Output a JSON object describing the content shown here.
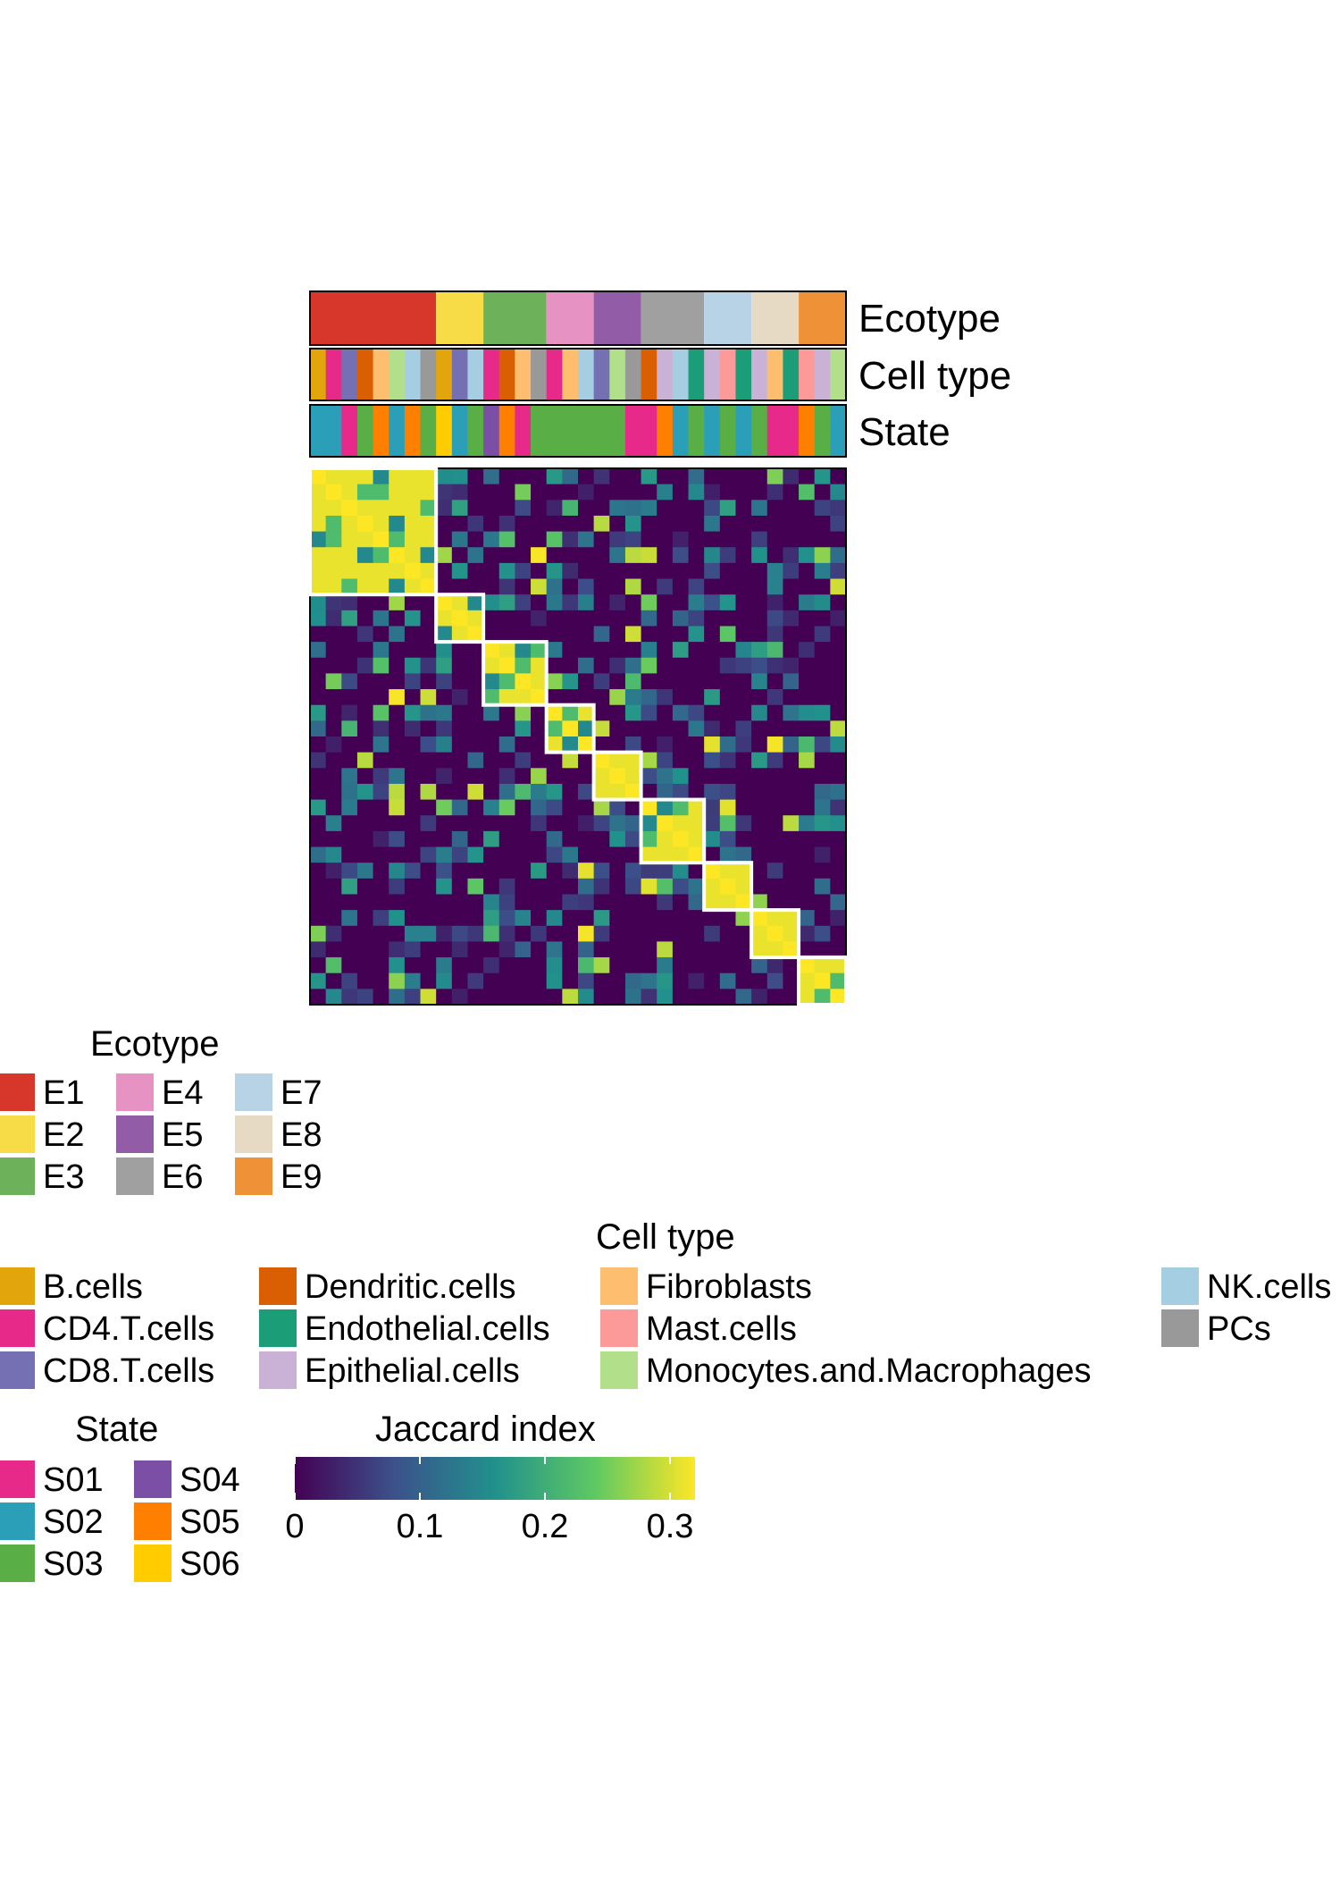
{
  "chart_data": {
    "type": "heatmap",
    "annotation_labels": [
      "Ecotype",
      "Cell type",
      "State"
    ],
    "ecotype_blocks": [
      {
        "label": "E1",
        "size": 8
      },
      {
        "label": "E2",
        "size": 3
      },
      {
        "label": "E3",
        "size": 4
      },
      {
        "label": "E4",
        "size": 3
      },
      {
        "label": "E5",
        "size": 3
      },
      {
        "label": "E6",
        "size": 4
      },
      {
        "label": "E7",
        "size": 3
      },
      {
        "label": "E8",
        "size": 3
      },
      {
        "label": "E9",
        "size": 3
      }
    ],
    "colorbar": {
      "title": "Jaccard index",
      "ticks": [
        "0",
        "0.1",
        "0.2",
        "0.3"
      ],
      "range": [
        0,
        0.32
      ],
      "palette": [
        "#440154",
        "#3b528b",
        "#21918c",
        "#5ec962",
        "#fde725"
      ]
    },
    "legends": {
      "ecotype": {
        "title": "Ecotype",
        "items": [
          {
            "label": "E1",
            "color": "#d7372b"
          },
          {
            "label": "E2",
            "color": "#f8dc47"
          },
          {
            "label": "E3",
            "color": "#6db15b"
          },
          {
            "label": "E4",
            "color": "#e693c4"
          },
          {
            "label": "E5",
            "color": "#925ca7"
          },
          {
            "label": "E6",
            "color": "#a0a0a0"
          },
          {
            "label": "E7",
            "color": "#b7d3e5"
          },
          {
            "label": "E8",
            "color": "#e6dac4"
          },
          {
            "label": "E9",
            "color": "#ef9137"
          }
        ]
      },
      "cell_type": {
        "title": "Cell type",
        "items": [
          {
            "label": "B.cells",
            "color": "#e2a60c"
          },
          {
            "label": "CD4.T.cells",
            "color": "#e7298a"
          },
          {
            "label": "CD8.T.cells",
            "color": "#7570b3"
          },
          {
            "label": "Dendritic.cells",
            "color": "#d95f02"
          },
          {
            "label": "Endothelial.cells",
            "color": "#1b9e77"
          },
          {
            "label": "Epithelial.cells",
            "color": "#cab2d6"
          },
          {
            "label": "Fibroblasts",
            "color": "#fdbf6f"
          },
          {
            "label": "Mast.cells",
            "color": "#fb9a99"
          },
          {
            "label": "Monocytes.and.Macrophages",
            "color": "#b2df8a"
          },
          {
            "label": "NK.cells",
            "color": "#a6cee3"
          },
          {
            "label": "PCs",
            "color": "#999999"
          }
        ]
      },
      "state": {
        "title": "State",
        "items": [
          {
            "label": "S01",
            "color": "#e7298a"
          },
          {
            "label": "S02",
            "color": "#2c9fb8"
          },
          {
            "label": "S03",
            "color": "#5aae46"
          },
          {
            "label": "S04",
            "color": "#7b4fa6"
          },
          {
            "label": "S05",
            "color": "#ff7f00"
          },
          {
            "label": "S06",
            "color": "#ffcc00"
          }
        ]
      }
    },
    "celltype_row": [
      "B.cells",
      "CD4.T.cells",
      "CD8.T.cells",
      "Dendritic.cells",
      "Fibroblasts",
      "Monocytes.and.Macrophages",
      "NK.cells",
      "PCs",
      "B.cells",
      "CD8.T.cells",
      "NK.cells",
      "CD4.T.cells",
      "Dendritic.cells",
      "Fibroblasts",
      "PCs",
      "CD4.T.cells",
      "Fibroblasts",
      "NK.cells",
      "CD8.T.cells",
      "Monocytes.and.Macrophages",
      "PCs",
      "Dendritic.cells",
      "Epithelial.cells",
      "NK.cells",
      "Endothelial.cells",
      "Epithelial.cells",
      "Mast.cells",
      "Endothelial.cells",
      "Epithelial.cells",
      "Fibroblasts",
      "Endothelial.cells",
      "Mast.cells",
      "Epithelial.cells",
      "Monocytes.and.Macrophages"
    ],
    "state_row": [
      "S02",
      "S02",
      "S01",
      "S03",
      "S05",
      "S02",
      "S05",
      "S03",
      "S06",
      "S02",
      "S03",
      "S04",
      "S05",
      "S01",
      "S03",
      "S03",
      "S03",
      "S03",
      "S03",
      "S03",
      "S01",
      "S01",
      "S05",
      "S02",
      "S03",
      "S02",
      "S03",
      "S02",
      "S03",
      "S01",
      "S01",
      "S05",
      "S03",
      "S02"
    ],
    "matrix_note_values": []
  }
}
